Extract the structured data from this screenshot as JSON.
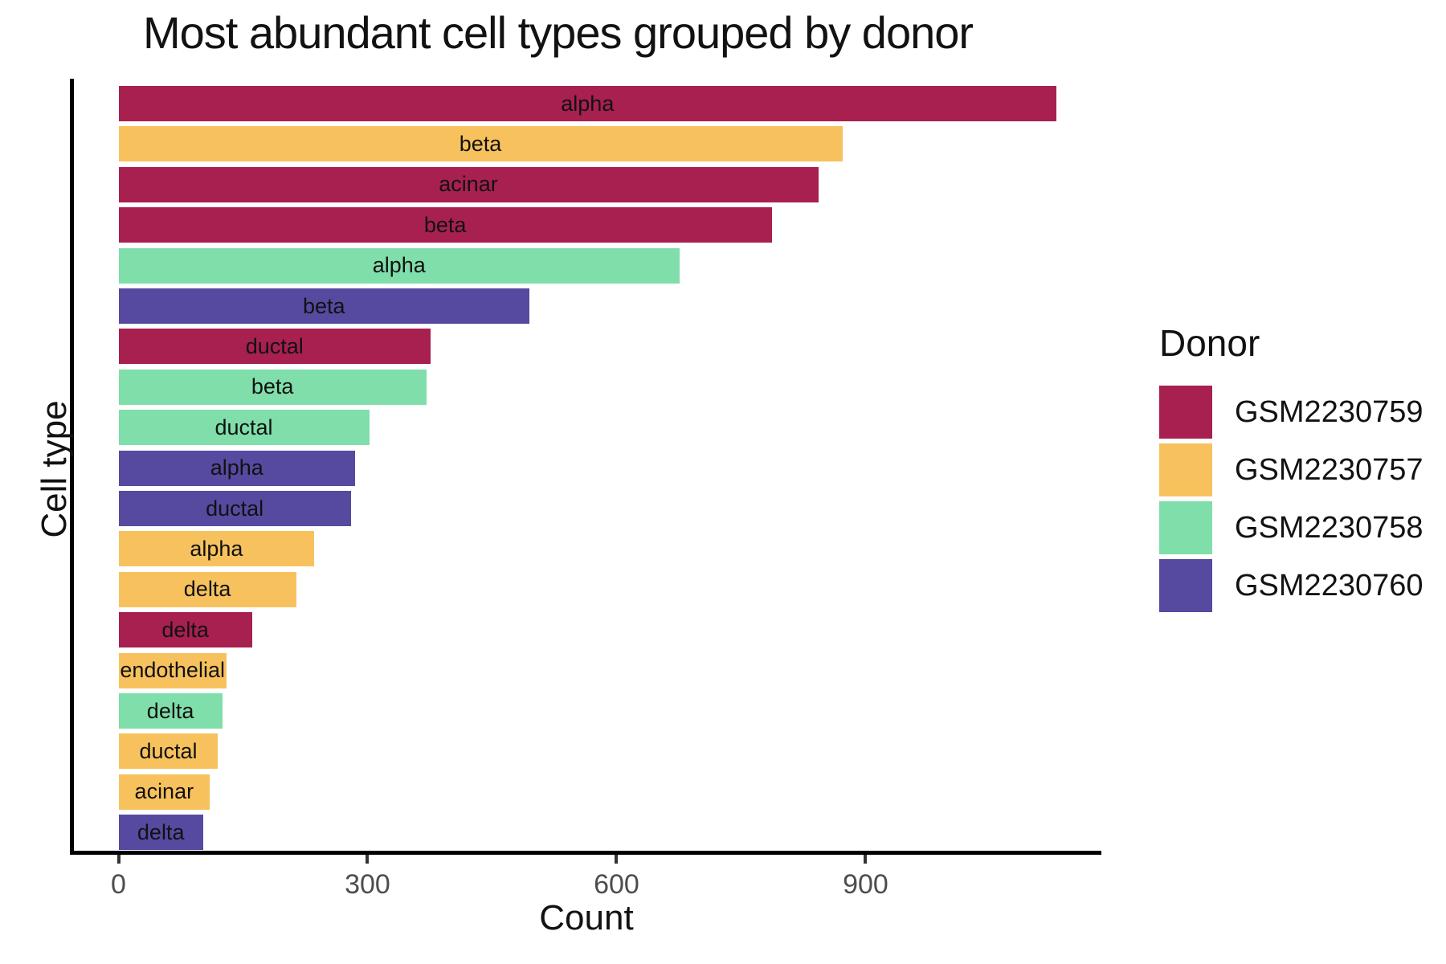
{
  "title": "Most abundant cell types grouped by donor",
  "x_axis": {
    "label": "Count",
    "ticks": [
      0,
      300,
      600,
      900
    ]
  },
  "y_axis": {
    "label": "Cell type"
  },
  "legend": {
    "title": "Donor",
    "position": "right",
    "entries": [
      {
        "label": "GSM2230759",
        "color": "#A72050"
      },
      {
        "label": "GSM2230757",
        "color": "#F7C25E"
      },
      {
        "label": "GSM2230758",
        "color": "#80DEAA"
      },
      {
        "label": "GSM2230760",
        "color": "#5649A0"
      }
    ]
  },
  "chart_data": {
    "type": "bar",
    "orientation": "horizontal",
    "title": "Most abundant cell types grouped by donor",
    "xlabel": "Count",
    "ylabel": "Cell type",
    "xlim": [
      0,
      1184
    ],
    "grid": false,
    "legend_position": "right",
    "series_key": "donor",
    "donor_colors": {
      "GSM2230759": "#A72050",
      "GSM2230757": "#F7C25E",
      "GSM2230758": "#80DEAA",
      "GSM2230760": "#5649A0"
    },
    "bars": [
      {
        "cell_type": "alpha",
        "donor": "GSM2230759",
        "count": 1130
      },
      {
        "cell_type": "beta",
        "donor": "GSM2230757",
        "count": 872
      },
      {
        "cell_type": "acinar",
        "donor": "GSM2230759",
        "count": 843
      },
      {
        "cell_type": "beta",
        "donor": "GSM2230759",
        "count": 787
      },
      {
        "cell_type": "alpha",
        "donor": "GSM2230758",
        "count": 676
      },
      {
        "cell_type": "beta",
        "donor": "GSM2230760",
        "count": 495
      },
      {
        "cell_type": "ductal",
        "donor": "GSM2230759",
        "count": 376
      },
      {
        "cell_type": "beta",
        "donor": "GSM2230758",
        "count": 371
      },
      {
        "cell_type": "ductal",
        "donor": "GSM2230758",
        "count": 302
      },
      {
        "cell_type": "alpha",
        "donor": "GSM2230760",
        "count": 285
      },
      {
        "cell_type": "ductal",
        "donor": "GSM2230760",
        "count": 280
      },
      {
        "cell_type": "alpha",
        "donor": "GSM2230757",
        "count": 236
      },
      {
        "cell_type": "delta",
        "donor": "GSM2230757",
        "count": 214
      },
      {
        "cell_type": "delta",
        "donor": "GSM2230759",
        "count": 161
      },
      {
        "cell_type": "endothelial",
        "donor": "GSM2230757",
        "count": 130
      },
      {
        "cell_type": "delta",
        "donor": "GSM2230758",
        "count": 125
      },
      {
        "cell_type": "ductal",
        "donor": "GSM2230757",
        "count": 120
      },
      {
        "cell_type": "acinar",
        "donor": "GSM2230757",
        "count": 110
      },
      {
        "cell_type": "delta",
        "donor": "GSM2230760",
        "count": 102
      }
    ]
  }
}
